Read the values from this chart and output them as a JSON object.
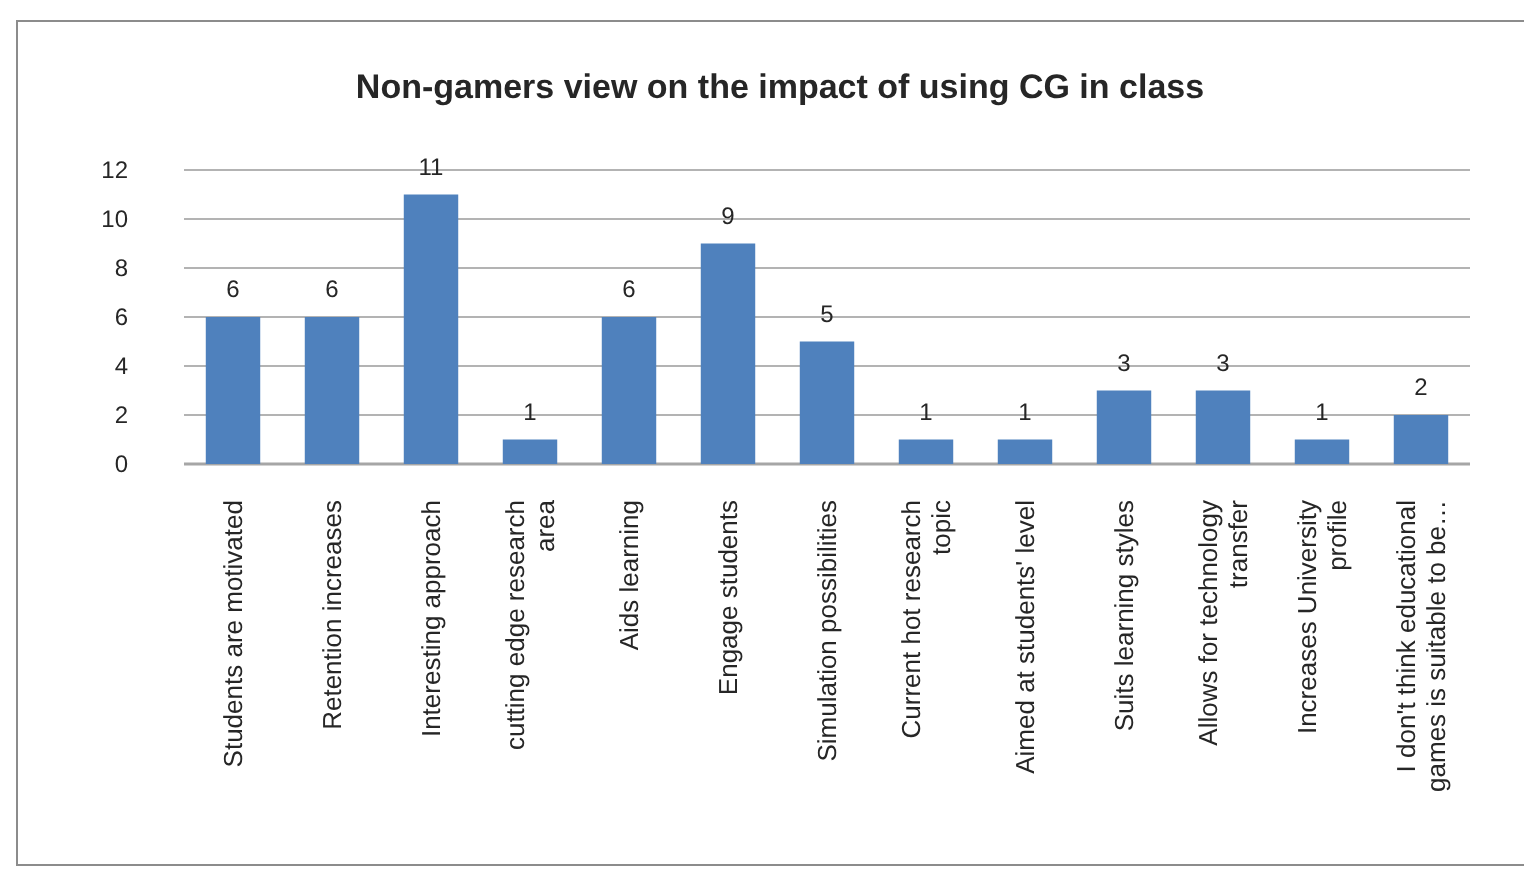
{
  "chart_data": {
    "type": "bar",
    "title": "Non-gamers view on the impact of using CG in class",
    "categories": [
      "Students are motivated",
      "Retention increases",
      "Interesting approach",
      "cutting edge research area",
      "Aids learning",
      "Engage students",
      "Simulation possibilities",
      "Current hot research topic",
      "Aimed at students' level",
      "Suits learning styles",
      "Allows for technology transfer",
      "Increases University profile",
      "I don't think educational games is suitable to be…"
    ],
    "values": [
      6,
      6,
      11,
      1,
      6,
      9,
      5,
      1,
      1,
      3,
      3,
      1,
      2
    ],
    "color": "#4f81bd",
    "ylim": [
      0,
      12
    ],
    "yticks": [
      0,
      2,
      4,
      6,
      8,
      10,
      12
    ],
    "grid": "y",
    "data_labels": true
  }
}
